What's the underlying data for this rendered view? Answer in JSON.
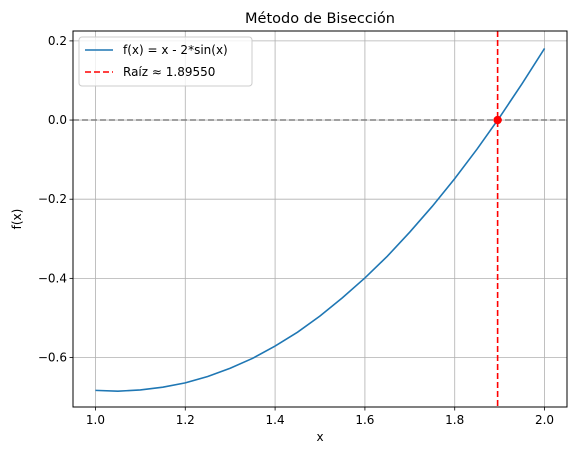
{
  "chart_data": {
    "type": "line",
    "title": "Método de Bisección",
    "xlabel": "x",
    "ylabel": "f(x)",
    "xlim": [
      0.95,
      2.05
    ],
    "ylim": [
      -0.725,
      0.225
    ],
    "xticks": [
      1.0,
      1.2,
      1.4,
      1.6,
      1.8,
      2.0
    ],
    "xtick_labels": [
      "1.0",
      "1.2",
      "1.4",
      "1.6",
      "1.8",
      "2.0"
    ],
    "yticks": [
      0.2,
      0.0,
      -0.2,
      -0.4,
      -0.6
    ],
    "ytick_labels": [
      "0.2",
      "0.0",
      "−0.2",
      "−0.4",
      "−0.6"
    ],
    "grid": true,
    "legend_position": "top-left",
    "series": [
      {
        "name": "f(x) = x - 2*sin(x)",
        "style": "solid",
        "color": "#1f77b4",
        "x": [
          1.0,
          1.05,
          1.1,
          1.15,
          1.2,
          1.25,
          1.3,
          1.35,
          1.4,
          1.45,
          1.5,
          1.55,
          1.6,
          1.65,
          1.7,
          1.75,
          1.8,
          1.85,
          1.9,
          1.95,
          2.0
        ],
        "y": [
          -0.683,
          -0.685,
          -0.682,
          -0.675,
          -0.664,
          -0.648,
          -0.627,
          -0.602,
          -0.571,
          -0.536,
          -0.495,
          -0.449,
          -0.399,
          -0.344,
          -0.283,
          -0.218,
          -0.148,
          -0.073,
          0.007,
          0.092,
          0.181
        ]
      },
      {
        "name": "Raíz ≈ 1.89550",
        "style": "dashed",
        "color": "#ff0000",
        "x_vertical": 1.8955
      }
    ],
    "reference_line": {
      "y": 0.0,
      "color": "#808080",
      "style": "dashed"
    },
    "root_point": {
      "x": 1.8955,
      "y": 0.0,
      "color": "#ff0000"
    }
  }
}
